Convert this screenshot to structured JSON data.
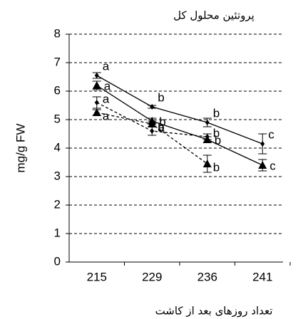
{
  "chart_data": {
    "type": "line",
    "title": "پروتئین محلول کل",
    "xlabel": "تعداد روزهای بعد از کاشت",
    "ylabel": "mg/g FW",
    "categories": [
      "215",
      "229",
      "236",
      "241"
    ],
    "ylim": [
      0,
      8
    ],
    "yticks": [
      0,
      1,
      2,
      3,
      4,
      5,
      6,
      7,
      8
    ],
    "grid": true,
    "series": [
      {
        "color": "#000000",
        "marker": "diamond",
        "dashed": false,
        "values": [
          6.55,
          5.45,
          4.9,
          4.15
        ],
        "errors": [
          0.1,
          0.05,
          0.15,
          0.35
        ],
        "letters": [
          "a",
          "b",
          "b",
          "c"
        ]
      },
      {
        "color": "#000000",
        "marker": "triangle",
        "dashed": false,
        "values": [
          6.2,
          4.95,
          4.3,
          3.4
        ],
        "errors": [
          0.15,
          0.1,
          0.1,
          0.2
        ],
        "letters": [
          "a",
          "b",
          "b",
          "c"
        ]
      },
      {
        "color": "#000000",
        "marker": "diamond",
        "dashed": true,
        "values": [
          5.6,
          4.6,
          4.4,
          null
        ],
        "errors": [
          0.2,
          0.15,
          0.1,
          null
        ],
        "letters": [
          "a",
          "a",
          "b",
          null
        ]
      },
      {
        "color": "#000000",
        "marker": "triangle",
        "dashed": true,
        "values": [
          5.25,
          4.85,
          3.45,
          null
        ],
        "errors": [
          0.1,
          0.1,
          0.3,
          null
        ],
        "letters": [
          "a",
          "b",
          "b",
          null
        ]
      }
    ]
  }
}
